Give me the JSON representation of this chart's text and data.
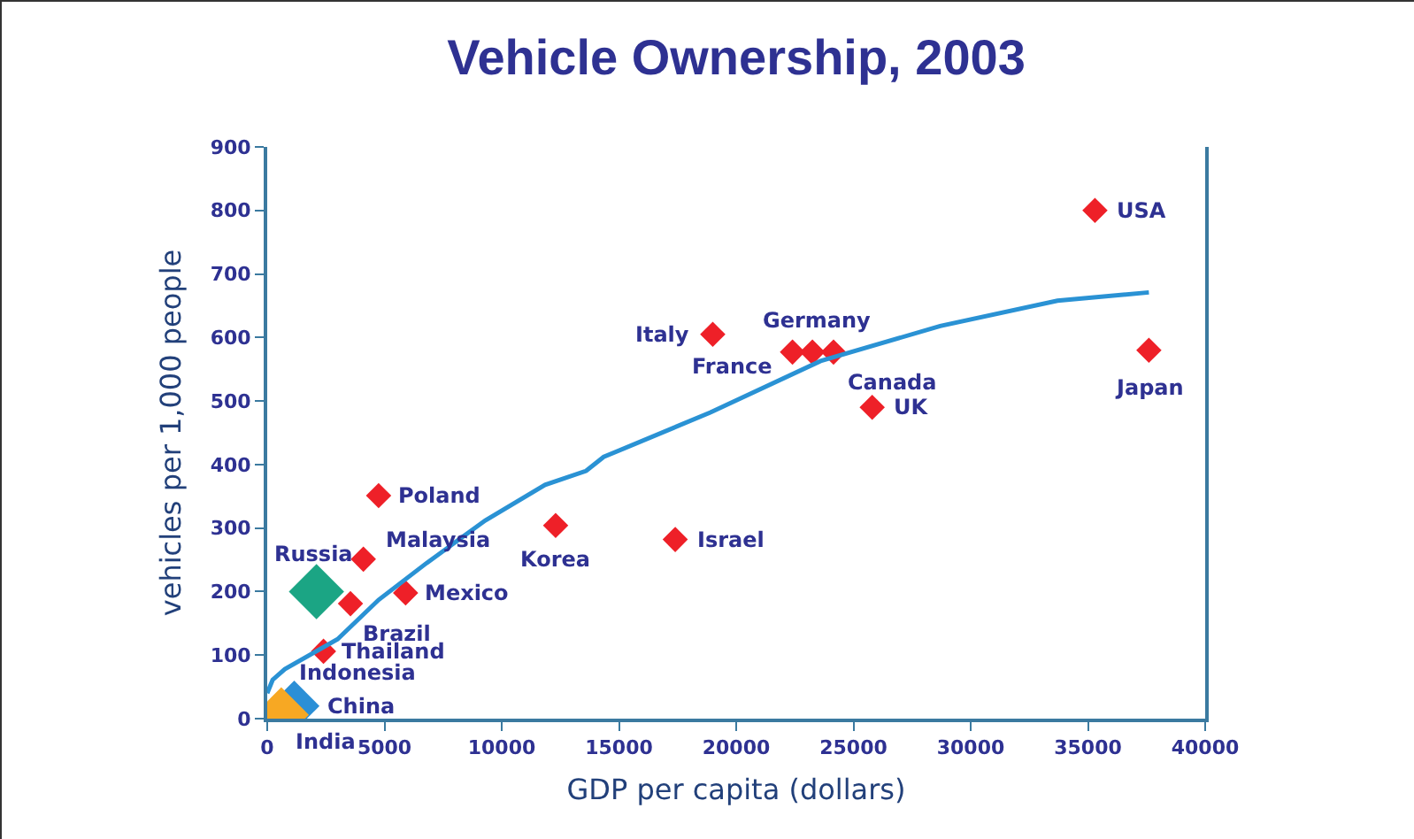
{
  "chart_data": {
    "type": "scatter",
    "title": "Vehicle Ownership, 2003",
    "xlabel": "GDP per capita (dollars)",
    "ylabel": "vehicles per 1,000 people",
    "xlim": [
      0,
      40000
    ],
    "xticks": [
      0,
      5000,
      10000,
      15000,
      20000,
      25000,
      30000,
      35000,
      40000
    ],
    "ylim": [
      0,
      900
    ],
    "yticks": [
      0,
      100,
      200,
      300,
      400,
      500,
      600,
      700,
      800,
      900
    ],
    "grid": false,
    "marker": "diamond",
    "series": [
      {
        "color": "#ee2028",
        "x": [
          35300,
          37600,
          19000,
          22400,
          23250,
          24150,
          25800,
          17400,
          12300,
          4750,
          4100,
          5900,
          3550,
          2400
        ],
        "values": [
          800,
          580,
          605,
          577,
          577,
          577,
          490,
          282,
          304,
          351,
          251,
          198,
          181,
          106
        ]
      },
      {
        "color": "#1ba584",
        "x": [
          2100
        ],
        "values": [
          200
        ]
      },
      {
        "color": "#2b8fd6",
        "x": [
          1150
        ],
        "values": [
          20
        ]
      },
      {
        "color": "#f7a823",
        "x": [
          600
        ],
        "values": [
          6
        ]
      },
      {
        "type": "line",
        "marker": "none",
        "color": "#2a92d4",
        "x": [
          0,
          230,
          750,
          3000,
          4750,
          6800,
          9300,
          11850,
          13600,
          14350,
          18900,
          23600,
          28700,
          33700,
          37600
        ],
        "values": [
          40,
          61,
          78,
          125,
          187,
          245,
          312,
          368,
          390,
          412,
          482,
          563,
          618,
          658,
          671
        ]
      }
    ],
    "annotations": [
      {
        "text": "USA",
        "x": 35300,
        "y": 800
      },
      {
        "text": "Japan",
        "x": 37600,
        "y": 580
      },
      {
        "text": "Italy",
        "x": 19000,
        "y": 605
      },
      {
        "text": "Germany",
        "x": 23250,
        "y": 577
      },
      {
        "text": "France",
        "x": 22400,
        "y": 577
      },
      {
        "text": "Canada",
        "x": 24150,
        "y": 577
      },
      {
        "text": "UK",
        "x": 25800,
        "y": 490
      },
      {
        "text": "Israel",
        "x": 17400,
        "y": 282
      },
      {
        "text": "Korea",
        "x": 12300,
        "y": 304
      },
      {
        "text": "Poland",
        "x": 4750,
        "y": 351
      },
      {
        "text": "Malaysia",
        "x": 4100,
        "y": 251
      },
      {
        "text": "Mexico",
        "x": 5900,
        "y": 198
      },
      {
        "text": "Brazil",
        "x": 3550,
        "y": 181
      },
      {
        "text": "Thailand",
        "x": 2400,
        "y": 106
      },
      {
        "text": "Russia",
        "x": 2100,
        "y": 200
      },
      {
        "text": "Indonesia",
        "x": 900,
        "y": 25
      },
      {
        "text": "China",
        "x": 1150,
        "y": 20
      },
      {
        "text": "India",
        "x": 600,
        "y": 6
      }
    ]
  }
}
